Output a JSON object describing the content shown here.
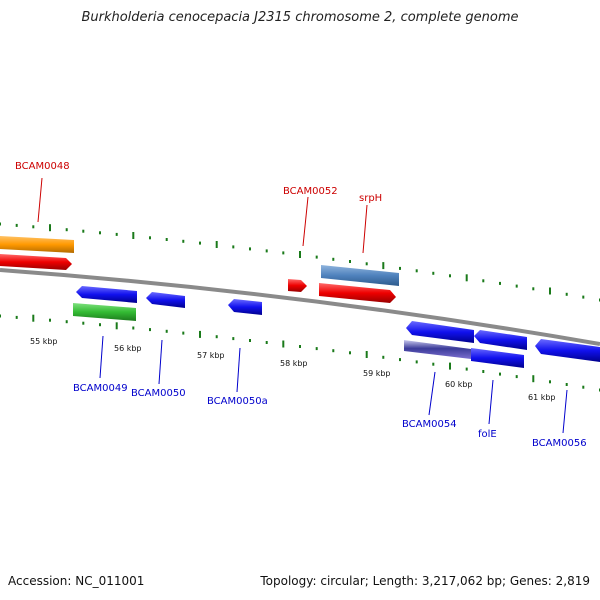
{
  "title": "Burkholderia cenocepacia J2315 chromosome 2, complete genome",
  "footer": {
    "accession": "Accession: NC_011001",
    "stats": "Topology: circular; Length: 3,217,062 bp; Genes: 2,819"
  },
  "ruler": [
    "55 kbp",
    "56 kbp",
    "57 kbp",
    "58 kbp",
    "59 kbp",
    "60 kbp",
    "61 kbp"
  ],
  "colors": {
    "forward_label": "#cc0000",
    "reverse_label": "#0000cc",
    "tick": "#1a7a1a",
    "backbone": "#888888"
  },
  "genes_forward": [
    {
      "name": "BCAM0048",
      "label": "BCAM0048"
    },
    {
      "name": "BCAM0052",
      "label": "BCAM0052"
    },
    {
      "name": "srpH",
      "label": "srpH"
    }
  ],
  "genes_reverse": [
    {
      "name": "BCAM0049",
      "label": "BCAM0049"
    },
    {
      "name": "BCAM0050",
      "label": "BCAM0050"
    },
    {
      "name": "BCAM0050a",
      "label": "BCAM0050a"
    },
    {
      "name": "BCAM0054",
      "label": "BCAM0054"
    },
    {
      "name": "folE",
      "label": "folE"
    },
    {
      "name": "BCAM0056",
      "label": "BCAM0056"
    }
  ]
}
